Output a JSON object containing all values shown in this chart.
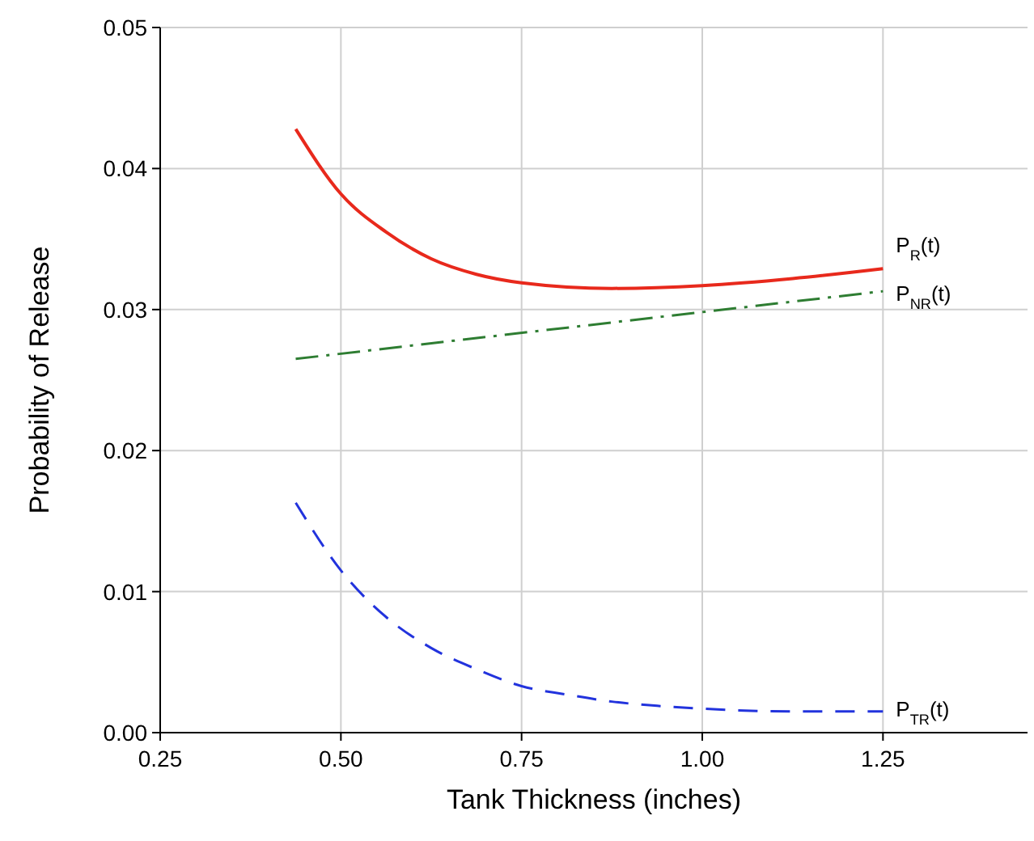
{
  "chart_data": {
    "type": "line",
    "xlabel": "Tank Thickness (inches)",
    "ylabel": "Probability of Release",
    "xlim": [
      0.25,
      1.45
    ],
    "xticks": [
      {
        "value": 0.25,
        "label": "0.25"
      },
      {
        "value": 0.5,
        "label": "0.50"
      },
      {
        "value": 0.75,
        "label": "0.75"
      },
      {
        "value": 1.0,
        "label": "1.00"
      },
      {
        "value": 1.25,
        "label": "1.25"
      }
    ],
    "ylim": [
      0,
      0.05
    ],
    "yticks": [
      {
        "value": 0,
        "label": "0.00"
      },
      {
        "value": 0.01,
        "label": "0.01"
      },
      {
        "value": 0.02,
        "label": "0.02"
      },
      {
        "value": 0.03,
        "label": "0.03"
      },
      {
        "value": 0.04,
        "label": "0.04"
      },
      {
        "value": 0.05,
        "label": "0.05"
      }
    ],
    "grid": true,
    "marker": "none",
    "series": [
      {
        "name": "P$_{R}$(t)",
        "color": "#e8291c",
        "line_style": "solid",
        "x": [
          0.4375,
          0.5,
          0.5625,
          0.625,
          0.6875,
          0.75,
          0.875,
          1.0,
          1.125,
          1.25
        ],
        "values": [
          0.0428,
          0.0382,
          0.0355,
          0.0336,
          0.0325,
          0.0319,
          0.0315,
          0.0317,
          0.0322,
          0.0329
        ]
      },
      {
        "name": "P$_{NR}$(t)",
        "color": "#2e7d32",
        "line_style": "dashdot",
        "x": [
          0.4375,
          1.25
        ],
        "values": [
          0.0265,
          0.0313
        ]
      },
      {
        "name": "P$_{TR}$(t)",
        "color": "#2233dd",
        "line_style": "dashed",
        "x": [
          0.4375,
          0.5,
          0.5625,
          0.625,
          0.6875,
          0.75,
          0.8125,
          0.875,
          0.9375,
          1.0,
          1.125,
          1.25
        ],
        "values": [
          0.0163,
          0.0115,
          0.0082,
          0.006,
          0.0045,
          0.0033,
          0.0027,
          0.0022,
          0.0019,
          0.0017,
          0.0015,
          0.0015
        ]
      }
    ]
  }
}
